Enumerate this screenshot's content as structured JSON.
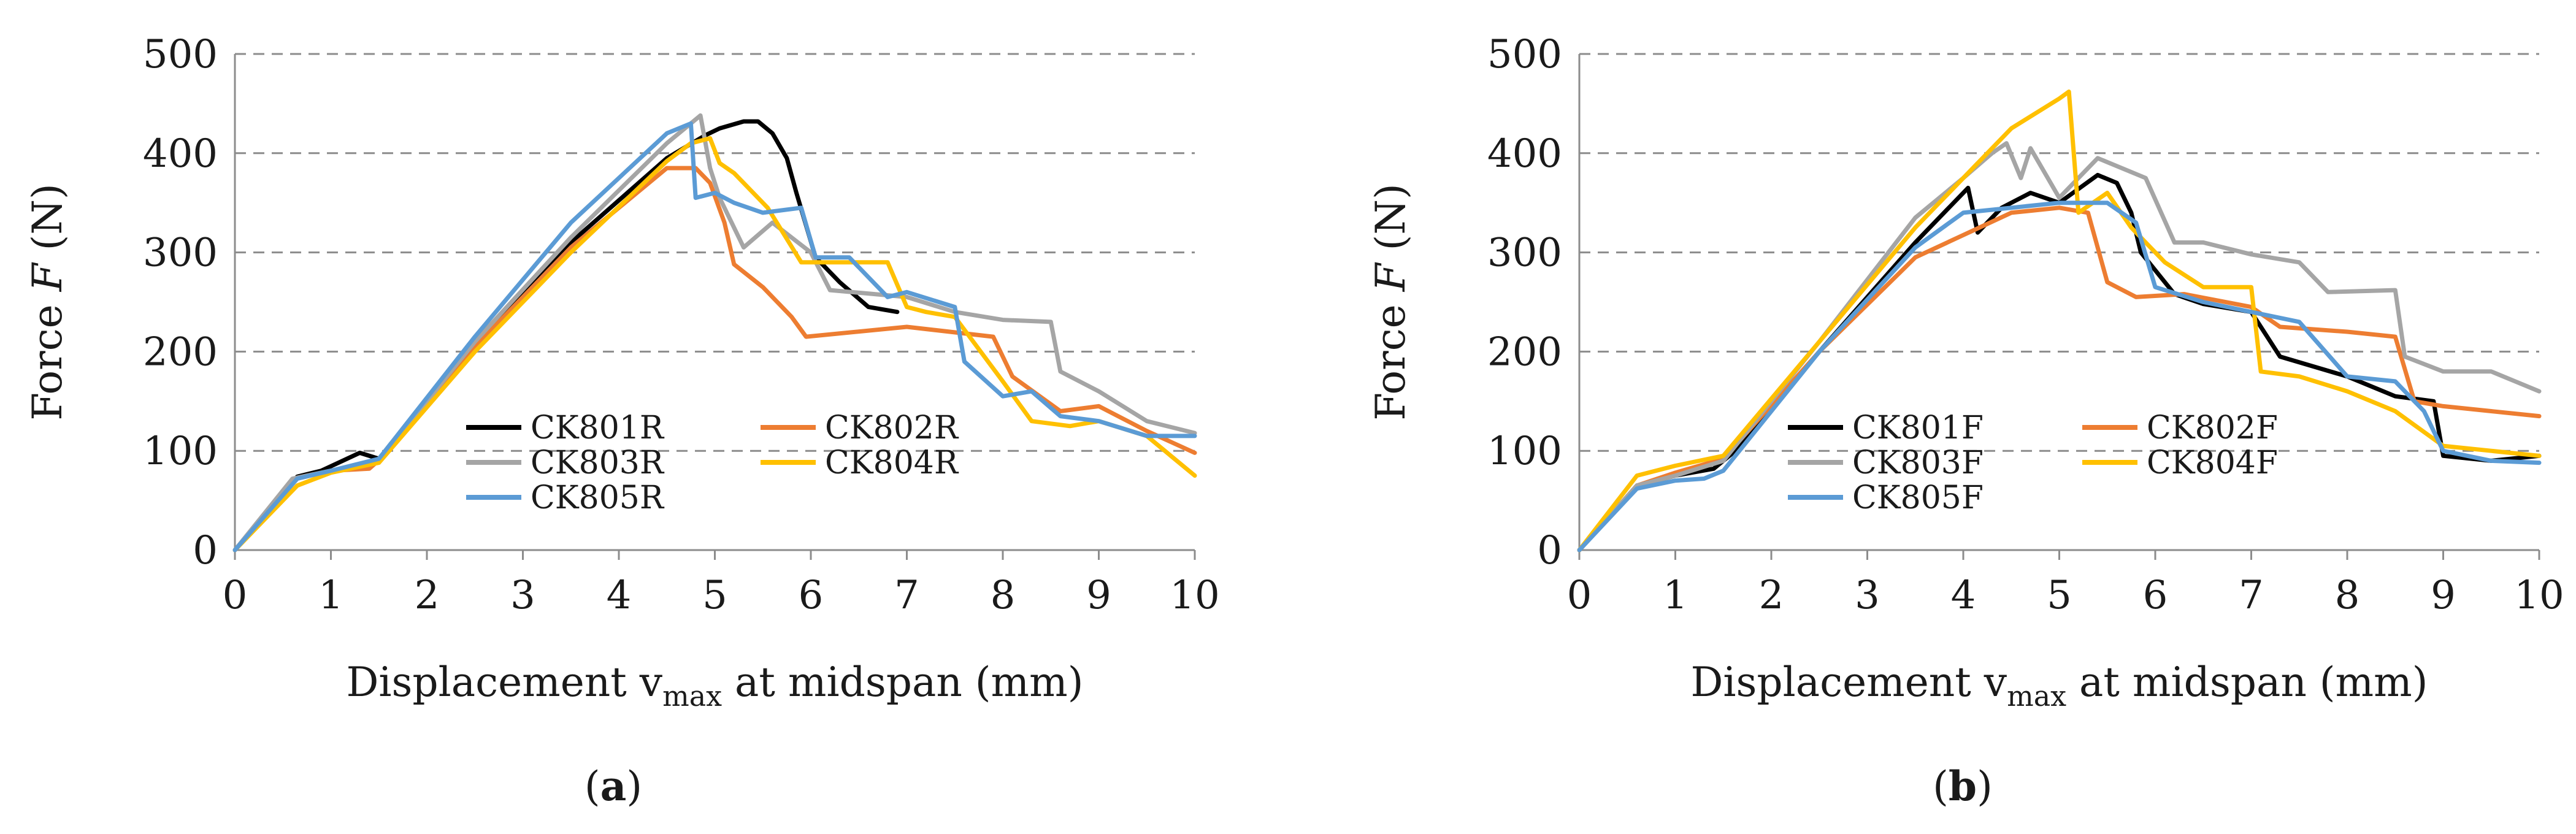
{
  "colors": {
    "black": "#000000",
    "orange": "#ed7d31",
    "gray": "#a5a5a5",
    "yellow": "#ffc000",
    "blue": "#5b9bd5",
    "grid": "#8c8c8c"
  },
  "chart_data": [
    {
      "type": "line",
      "panel_label": "a",
      "xlabel": "Displacement v",
      "xlabel_sub": "max",
      "xlabel_suffix": " at midspan (mm)",
      "ylabel": "Force ",
      "ylabel_var": "F",
      "ylabel_unit": " (N)",
      "xlim": [
        0,
        10
      ],
      "ylim": [
        0,
        500
      ],
      "xticks": [
        0,
        1,
        2,
        3,
        4,
        5,
        6,
        7,
        8,
        9,
        10
      ],
      "yticks": [
        0,
        100,
        200,
        300,
        400,
        500
      ],
      "grid": "horizontal-dashed",
      "legend_position": "lower-left",
      "series": [
        {
          "name": "CK801R",
          "color": "#000000",
          "x": [
            0,
            0.65,
            0.9,
            1.3,
            1.5,
            2.5,
            3.5,
            4.5,
            4.9,
            5.05,
            5.3,
            5.45,
            5.6,
            5.75,
            5.85,
            6.05,
            6.3,
            6.6,
            6.9
          ],
          "y": [
            0,
            74,
            80,
            98,
            92,
            210,
            310,
            395,
            418,
            425,
            432,
            432,
            420,
            395,
            360,
            295,
            270,
            245,
            240
          ]
        },
        {
          "name": "CK802R",
          "color": "#ed7d31",
          "x": [
            0,
            0.65,
            1.0,
            1.4,
            1.55,
            2.5,
            3.5,
            4.5,
            4.8,
            4.95,
            5.1,
            5.2,
            5.5,
            5.8,
            5.95,
            7.0,
            7.9,
            8.1,
            8.6,
            9.0,
            9.5,
            10.0
          ],
          "y": [
            0,
            72,
            80,
            82,
            95,
            205,
            305,
            385,
            385,
            370,
            330,
            288,
            265,
            235,
            215,
            225,
            215,
            175,
            140,
            145,
            120,
            98
          ]
        },
        {
          "name": "CK803R",
          "color": "#a5a5a5",
          "x": [
            0,
            0.6,
            1.0,
            1.5,
            2.5,
            3.5,
            4.5,
            4.85,
            4.95,
            5.05,
            5.3,
            5.6,
            6.0,
            6.2,
            7.0,
            7.5,
            8.0,
            8.5,
            8.6,
            9.0,
            9.5,
            10.0
          ],
          "y": [
            0,
            72,
            80,
            90,
            210,
            315,
            410,
            438,
            385,
            355,
            305,
            330,
            300,
            262,
            255,
            240,
            232,
            230,
            180,
            160,
            130,
            118
          ]
        },
        {
          "name": "CK804R",
          "color": "#ffc000",
          "x": [
            0,
            0.65,
            1.0,
            1.5,
            2.5,
            3.5,
            4.5,
            4.75,
            4.95,
            5.05,
            5.2,
            5.55,
            5.9,
            6.4,
            6.8,
            7.0,
            7.2,
            7.5,
            8.0,
            8.3,
            8.7,
            9.0,
            9.5,
            10.0
          ],
          "y": [
            0,
            65,
            78,
            88,
            200,
            300,
            392,
            410,
            415,
            390,
            380,
            345,
            290,
            290,
            290,
            245,
            240,
            235,
            170,
            130,
            125,
            130,
            115,
            75
          ]
        },
        {
          "name": "CK805R",
          "color": "#5b9bd5",
          "x": [
            0,
            0.65,
            1.0,
            1.5,
            2.5,
            3.5,
            4.5,
            4.75,
            4.8,
            5.0,
            5.2,
            5.5,
            5.9,
            6.05,
            6.4,
            6.8,
            7.0,
            7.5,
            7.6,
            8.0,
            8.3,
            8.6,
            9.0,
            9.5,
            10.0
          ],
          "y": [
            0,
            72,
            80,
            92,
            215,
            330,
            420,
            430,
            355,
            360,
            350,
            340,
            345,
            295,
            295,
            255,
            260,
            245,
            190,
            155,
            160,
            135,
            130,
            115,
            115
          ]
        }
      ]
    },
    {
      "type": "line",
      "panel_label": "b",
      "xlabel": "Displacement v",
      "xlabel_sub": "max",
      "xlabel_suffix": " at midspan (mm)",
      "ylabel": "Force ",
      "ylabel_var": "F",
      "ylabel_unit": " (N)",
      "xlim": [
        0,
        10
      ],
      "ylim": [
        0,
        500
      ],
      "xticks": [
        0,
        1,
        2,
        3,
        4,
        5,
        6,
        7,
        8,
        9,
        10
      ],
      "yticks": [
        0,
        100,
        200,
        300,
        400,
        500
      ],
      "grid": "horizontal-dashed",
      "legend_position": "lower-left",
      "series": [
        {
          "name": "CK801F",
          "color": "#000000",
          "x": [
            0,
            0.6,
            1.0,
            1.4,
            1.6,
            2.5,
            3.5,
            4.05,
            4.15,
            4.4,
            4.7,
            5.0,
            5.4,
            5.6,
            5.75,
            5.85,
            6.2,
            6.5,
            7.0,
            7.3,
            8.0,
            8.5,
            8.9,
            9.0,
            9.5,
            10.0
          ],
          "y": [
            0,
            65,
            75,
            82,
            98,
            200,
            310,
            365,
            320,
            345,
            360,
            350,
            378,
            370,
            340,
            300,
            258,
            248,
            240,
            195,
            175,
            155,
            150,
            95,
            90,
            95
          ]
        },
        {
          "name": "CK802F",
          "color": "#ed7d31",
          "x": [
            0,
            0.6,
            1.0,
            1.5,
            2.5,
            3.5,
            4.5,
            5.0,
            5.3,
            5.5,
            5.8,
            6.3,
            7.0,
            7.3,
            8.0,
            8.5,
            8.7,
            9.0,
            9.5,
            10.0
          ],
          "y": [
            0,
            65,
            78,
            92,
            200,
            295,
            340,
            345,
            340,
            270,
            255,
            258,
            245,
            225,
            220,
            215,
            150,
            145,
            140,
            135
          ]
        },
        {
          "name": "CK803F",
          "color": "#a5a5a5",
          "x": [
            0,
            0.6,
            1.0,
            1.5,
            2.5,
            3.5,
            4.0,
            4.3,
            4.45,
            4.6,
            4.7,
            5.0,
            5.4,
            5.9,
            6.2,
            6.5,
            7.0,
            7.5,
            7.8,
            8.5,
            8.6,
            9.0,
            9.5,
            10.0
          ],
          "y": [
            0,
            65,
            75,
            90,
            210,
            335,
            375,
            400,
            410,
            375,
            405,
            355,
            395,
            375,
            310,
            310,
            298,
            290,
            260,
            262,
            195,
            180,
            180,
            160
          ]
        },
        {
          "name": "CK804F",
          "color": "#ffc000",
          "x": [
            0,
            0.6,
            1.0,
            1.5,
            2.5,
            3.5,
            4.5,
            5.0,
            5.1,
            5.2,
            5.5,
            5.75,
            6.1,
            6.5,
            7.0,
            7.1,
            7.5,
            8.0,
            8.5,
            9.0,
            9.5,
            10.0
          ],
          "y": [
            0,
            75,
            85,
            95,
            210,
            325,
            425,
            455,
            462,
            340,
            360,
            325,
            290,
            265,
            265,
            180,
            175,
            160,
            140,
            105,
            100,
            95
          ]
        },
        {
          "name": "CK805F",
          "color": "#5b9bd5",
          "x": [
            0,
            0.6,
            1.0,
            1.3,
            1.5,
            2.5,
            3.5,
            4.0,
            4.5,
            5.0,
            5.5,
            5.8,
            6.0,
            6.5,
            7.0,
            7.5,
            8.0,
            8.5,
            8.8,
            9.0,
            9.5,
            10.0
          ],
          "y": [
            0,
            62,
            70,
            72,
            80,
            200,
            305,
            340,
            345,
            350,
            350,
            330,
            265,
            250,
            240,
            230,
            175,
            170,
            140,
            100,
            90,
            88
          ]
        }
      ]
    }
  ]
}
